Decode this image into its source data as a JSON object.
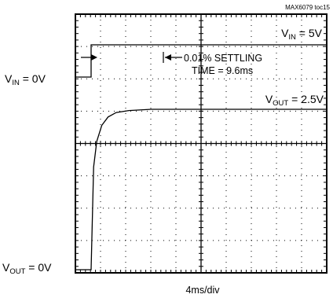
{
  "chart_data": {
    "type": "line",
    "title": "",
    "watermark_text": "MAX6079 toc15",
    "xlabel": "4ms/div",
    "grid": true,
    "x_divisions": 10,
    "y_divisions": 8,
    "x_unit": "ms",
    "x_per_div": 4,
    "xlim": [
      0,
      40
    ],
    "series": [
      {
        "name": "VIN",
        "x": [
          0,
          2.5,
          2.5,
          40
        ],
        "y": [
          0,
          0,
          5,
          5
        ],
        "unit": "V"
      },
      {
        "name": "VOUT",
        "x": [
          0,
          2.5,
          2.9,
          3.4,
          4.2,
          5.2,
          6.5,
          8.5,
          12.1,
          40
        ],
        "y": [
          0,
          0,
          1.6,
          2.0,
          2.25,
          2.38,
          2.45,
          2.48,
          2.5,
          2.5
        ],
        "unit": "V"
      }
    ],
    "annotations": {
      "vin_high": {
        "main": "V",
        "sub": "IN",
        "rest": " = 5V"
      },
      "vin_low": {
        "main": "V",
        "sub": "IN",
        "rest": " = 0V"
      },
      "vout_high": {
        "main": "V",
        "sub": "OUT",
        "rest": " = 2.5V"
      },
      "vout_low": {
        "main": "V",
        "sub": "OUT",
        "rest": " = 0V"
      },
      "settling_line1": "0.01% SETTLING",
      "settling_line2": "TIME = 9.6ms"
    }
  }
}
